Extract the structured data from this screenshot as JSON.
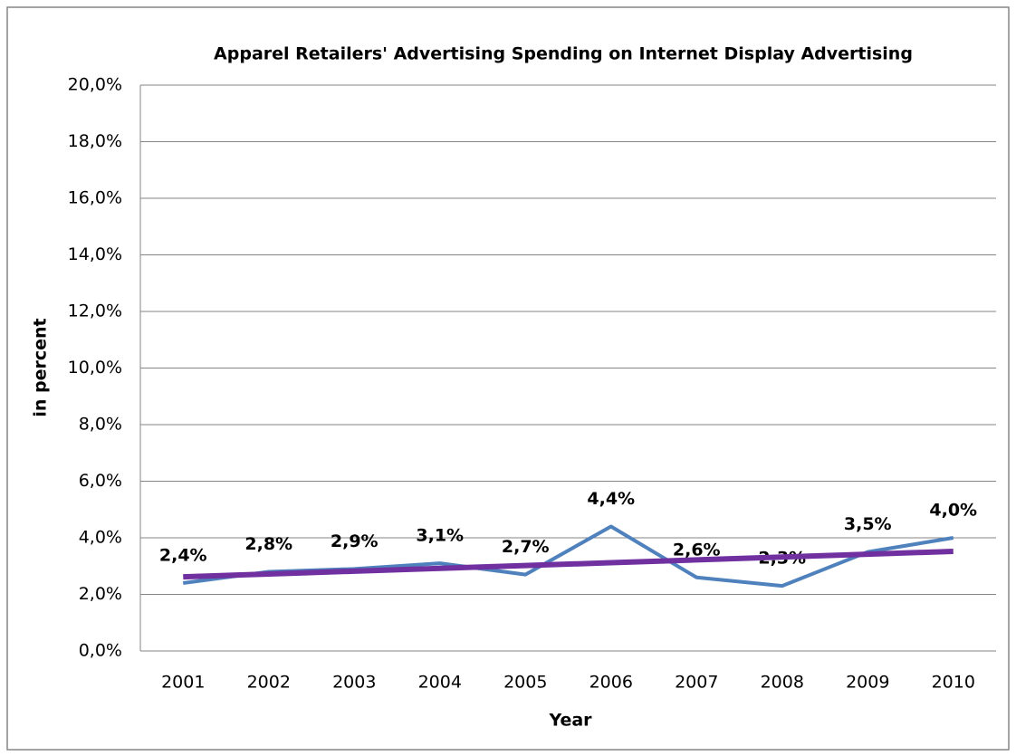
{
  "chart_data": {
    "type": "line",
    "title": "Apparel Retailers' Advertising Spending on Internet Display Advertising",
    "xlabel": "Year",
    "ylabel": "in percent",
    "categories": [
      "2001",
      "2002",
      "2003",
      "2004",
      "2005",
      "2006",
      "2007",
      "2008",
      "2009",
      "2010"
    ],
    "series": [
      {
        "color": "#4f81bd",
        "values": [
          2.4,
          2.8,
          2.9,
          3.1,
          2.7,
          4.4,
          2.6,
          2.3,
          3.5,
          4.0
        ],
        "value_labels": [
          "2,4%",
          "2,8%",
          "2,9%",
          "3,1%",
          "2,7%",
          "4,4%",
          "2,6%",
          "2,3%",
          "3,5%",
          "4,0%"
        ]
      },
      {
        "color": "#7030a0",
        "values": [
          2.62,
          2.72,
          2.82,
          2.92,
          3.02,
          3.12,
          3.22,
          3.32,
          3.42,
          3.52
        ]
      }
    ],
    "ylim": [
      0,
      20
    ],
    "yticks": [
      {
        "value": 0,
        "label": "0,0%"
      },
      {
        "value": 2,
        "label": "2,0%"
      },
      {
        "value": 4,
        "label": "4,0%"
      },
      {
        "value": 6,
        "label": "6,0%"
      },
      {
        "value": 8,
        "label": "8,0%"
      },
      {
        "value": 10,
        "label": "10,0%"
      },
      {
        "value": 12,
        "label": "12,0%"
      },
      {
        "value": 14,
        "label": "14,0%"
      },
      {
        "value": 16,
        "label": "16,0%"
      },
      {
        "value": 18,
        "label": "18,0%"
      },
      {
        "value": 20,
        "label": "20,0%"
      }
    ],
    "grid": true
  }
}
